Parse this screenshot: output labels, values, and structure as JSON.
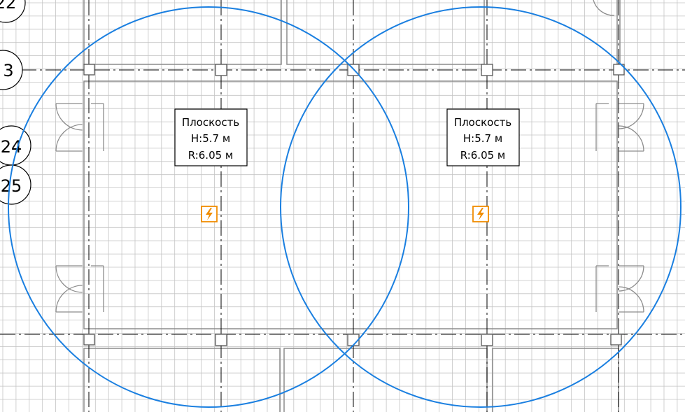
{
  "colors": {
    "grid": "#c4c4c4",
    "wall": "#8c8c8c",
    "axis": "#000000",
    "zone": "#1a7fe0",
    "rod_icon": "#f08c00"
  },
  "axes": {
    "22": "22",
    "23": "3",
    "24": "24",
    "25": "25"
  },
  "planes": [
    {
      "title": "Плоскость",
      "height": "H:5.7 м",
      "radius": "R:6.05 м",
      "icon": "lightning-rod-icon"
    },
    {
      "title": "Плоскость",
      "height": "H:5.7 м",
      "radius": "R:6.05 м",
      "icon": "lightning-rod-icon"
    }
  ]
}
